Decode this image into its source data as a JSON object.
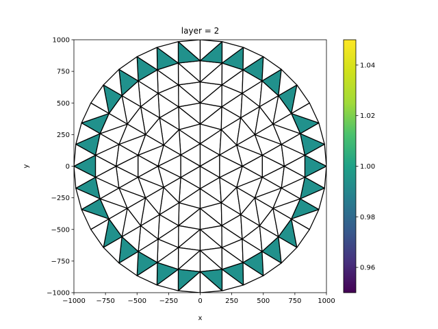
{
  "chart_data": {
    "type": "mesh",
    "title": "layer = 2",
    "xlabel": "x",
    "ylabel": "y",
    "xlim": [
      -1000,
      1000
    ],
    "ylim": [
      -1000,
      1000
    ],
    "xticks": [
      -1000,
      -750,
      -500,
      -250,
      0,
      250,
      500,
      750,
      1000
    ],
    "yticks": [
      -1000,
      -750,
      -500,
      -250,
      0,
      250,
      500,
      750,
      1000
    ],
    "xtick_labels": [
      "−1000",
      "−750",
      "−500",
      "−250",
      "0",
      "250",
      "500",
      "750",
      "1000"
    ],
    "ytick_labels": [
      "−1000",
      "−750",
      "−500",
      "−250",
      "0",
      "250",
      "500",
      "750",
      "1000"
    ],
    "grid": false,
    "domain": {
      "shape": "circle",
      "radius": 1000
    },
    "mesh_rings": [
      {
        "radius": 0,
        "count": 1
      },
      {
        "radius": 178,
        "count": 6
      },
      {
        "radius": 334,
        "count": 12
      },
      {
        "radius": 500,
        "count": 18
      },
      {
        "radius": 666,
        "count": 24
      },
      {
        "radius": 834,
        "count": 30
      },
      {
        "radius": 1000,
        "count": 36
      }
    ],
    "filled_elements": "boundary triangles (outer ring, pointing outward)",
    "filled_value": 1.0,
    "filled_color": "#21918c",
    "colorbar": {
      "colormap": "viridis",
      "min": 0.95,
      "max": 1.05,
      "ticks": [
        0.96,
        0.98,
        1.0,
        1.02,
        1.04
      ],
      "tick_labels": [
        "0.96",
        "0.98",
        "1.00",
        "1.02",
        "1.04"
      ]
    }
  }
}
